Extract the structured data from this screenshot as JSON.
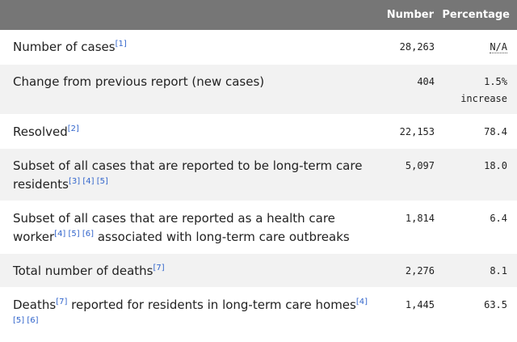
{
  "table": {
    "headers": {
      "label": "",
      "number": "Number",
      "percentage": "Percentage"
    },
    "rows": [
      {
        "label_parts": [
          "Number of cases"
        ],
        "refs": [
          "[1]"
        ],
        "number": "28,263",
        "percentage": "N/A",
        "percentage_note": ""
      },
      {
        "label_parts": [
          "Change from previous report (new cases)"
        ],
        "refs": [],
        "number": "404",
        "percentage": "1.5%",
        "percentage_note": "increase"
      },
      {
        "label_parts": [
          "Resolved"
        ],
        "refs": [
          "[2]"
        ],
        "number": "22,153",
        "percentage": "78.4",
        "percentage_note": ""
      },
      {
        "label_parts": [
          "Subset of all cases that are reported to be long-term care residents"
        ],
        "refs": [
          "[3]",
          "[4]",
          "[5]"
        ],
        "number": "5,097",
        "percentage": "18.0",
        "percentage_note": ""
      },
      {
        "label_parts": [
          "Subset of all cases that are reported as a health care worker",
          " associated with long-term care outbreaks"
        ],
        "refs": [
          "[4]",
          "[5]",
          "[6]"
        ],
        "number": "1,814",
        "percentage": "6.4",
        "percentage_note": ""
      },
      {
        "label_parts": [
          "Total number of deaths"
        ],
        "refs": [
          "[7]"
        ],
        "number": "2,276",
        "percentage": "8.1",
        "percentage_note": ""
      },
      {
        "label_parts": [
          "Deaths",
          " reported for residents in long-term care homes"
        ],
        "refs": [
          "[7]",
          "[4]",
          "[5]",
          "[6]"
        ],
        "number": "1,445",
        "percentage": "63.5",
        "percentage_note": ""
      }
    ]
  },
  "colors": {
    "header_bg": "#767676",
    "header_text": "#ffffff",
    "row_alt_bg": "#f2f2f2",
    "ref_link": "#3366cc"
  }
}
